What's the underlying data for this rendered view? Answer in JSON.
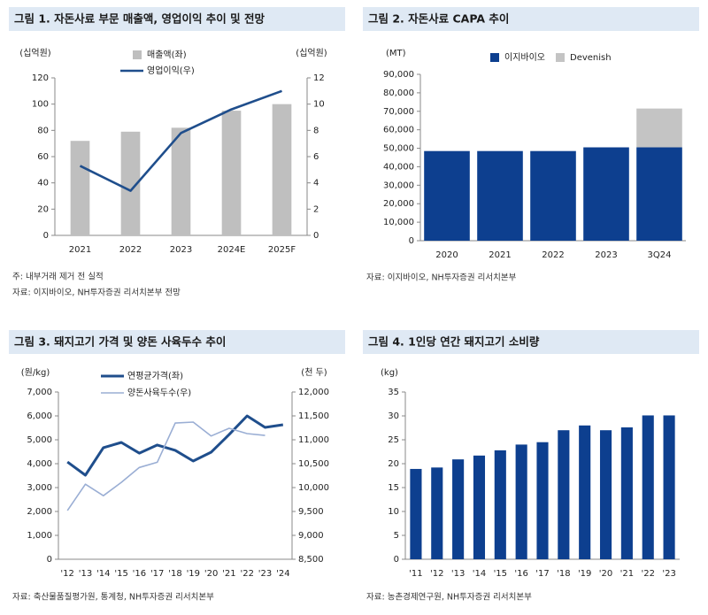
{
  "chart_data": [
    {
      "type": "combo",
      "title": "그림 1. 자돈사료 부문 매출액, 영업이익 추이 및 전망",
      "y_label": "(십억원)",
      "y2_label": "(십억원)",
      "categories": [
        "2021",
        "2022",
        "2023",
        "2024E",
        "2025F"
      ],
      "series": [
        {
          "name": "매출액(좌)",
          "type": "bar",
          "color": "#bfbfbf",
          "values": [
            72,
            79,
            82,
            95,
            100
          ]
        },
        {
          "name": "영업이익(우)",
          "type": "line",
          "axis": "y2",
          "color": "#1f4e8c",
          "values": [
            5.3,
            3.4,
            7.8,
            9.6,
            11.0
          ]
        }
      ],
      "ylim": [
        0,
        120
      ],
      "yticks": [
        0,
        20,
        40,
        60,
        80,
        100,
        120
      ],
      "y2lim": [
        0,
        12
      ],
      "y2ticks": [
        0,
        2,
        4,
        6,
        8,
        10,
        12
      ],
      "notes": [
        "주: 내부거래 제거 전 실적",
        "자료: 이지바이오, NH투자증권 리서치본부 전망"
      ]
    },
    {
      "type": "bar",
      "stacked": true,
      "title": "그림 2. 자돈사료 CAPA 추이",
      "y_label": "(MT)",
      "categories": [
        "2020",
        "2021",
        "2022",
        "2023",
        "3Q24"
      ],
      "series": [
        {
          "name": "이지바이오",
          "color": "#0d3f8f",
          "values": [
            48500,
            48500,
            48500,
            50500,
            50500
          ]
        },
        {
          "name": "Devenish",
          "color": "#c4c4c4",
          "values": [
            0,
            0,
            0,
            0,
            21000
          ]
        }
      ],
      "ylim": [
        0,
        90000
      ],
      "yticks": [
        0,
        {
          "value": 10000,
          "label": "10,000"
        },
        {
          "value": 20000,
          "label": "20,000"
        },
        {
          "value": 30000,
          "label": "30,000"
        },
        {
          "value": 40000,
          "label": "40,000"
        },
        {
          "value": 50000,
          "label": "50,000"
        },
        {
          "value": 60000,
          "label": "60,000"
        },
        {
          "value": 70000,
          "label": "70,000"
        },
        {
          "value": 80000,
          "label": "80,000"
        },
        {
          "value": 90000,
          "label": "90,000"
        }
      ],
      "notes": [
        "자료: 이지바이오, NH투자증권 리서치본부"
      ]
    },
    {
      "type": "line",
      "title": "그림 3. 돼지고기 가격 및 양돈 사육두수 추이",
      "y_label": "(원/kg)",
      "y2_label": "(천 두)",
      "categories": [
        "'12",
        "'13",
        "'14",
        "'15",
        "'16",
        "'17",
        "'18",
        "'19",
        "'20",
        "'21",
        "'22",
        "'23",
        "'24"
      ],
      "series": [
        {
          "name": "연평균가격(좌)",
          "color": "#1f4e8c",
          "width": 3,
          "values": [
            4070,
            3520,
            4670,
            4890,
            4440,
            4780,
            4560,
            4110,
            4480,
            5220,
            6000,
            5520,
            5630
          ]
        },
        {
          "name": "양돈사육두수(우)",
          "axis": "y2",
          "color": "#9aaed4",
          "width": 1.6,
          "values": [
            9520,
            10070,
            9830,
            10110,
            10420,
            10530,
            11350,
            11370,
            11080,
            11240,
            11130,
            11090,
            null
          ]
        }
      ],
      "ylim": [
        0,
        7000
      ],
      "yticks": [
        0,
        {
          "value": 1000,
          "label": "1,000"
        },
        {
          "value": 2000,
          "label": "2,000"
        },
        {
          "value": 3000,
          "label": "3,000"
        },
        {
          "value": 4000,
          "label": "4,000"
        },
        {
          "value": 5000,
          "label": "5,000"
        },
        {
          "value": 6000,
          "label": "6,000"
        },
        {
          "value": 7000,
          "label": "7,000"
        }
      ],
      "y2lim": [
        8500,
        12000
      ],
      "y2ticks": [
        {
          "value": 8500,
          "label": "8,500"
        },
        {
          "value": 9000,
          "label": "9,000"
        },
        {
          "value": 9500,
          "label": "9,500"
        },
        {
          "value": 10000,
          "label": "10,000"
        },
        {
          "value": 10500,
          "label": "10,500"
        },
        {
          "value": 11000,
          "label": "11,000"
        },
        {
          "value": 11500,
          "label": "11,500"
        },
        {
          "value": 12000,
          "label": "12,000"
        }
      ],
      "notes": [
        "자료: 축산물품질평가원, 통계청, NH투자증권 리서치본부"
      ]
    },
    {
      "type": "bar",
      "title": "그림 4. 1인당 연간 돼지고기 소비량",
      "y_label": "(kg)",
      "categories": [
        "'11",
        "'12",
        "'13",
        "'14",
        "'15",
        "'16",
        "'17",
        "'18",
        "'19",
        "'20",
        "'21",
        "'22",
        "'23"
      ],
      "color": "#0d3f8f",
      "values": [
        18.9,
        19.2,
        20.9,
        21.7,
        22.8,
        24.0,
        24.5,
        27.0,
        28.0,
        27.0,
        27.6,
        30.1,
        30.1
      ],
      "ylim": [
        0,
        35
      ],
      "yticks": [
        0,
        5,
        10,
        15,
        20,
        25,
        30,
        35
      ],
      "notes": [
        "자료: 농촌경제연구원, NH투자증권 리서치본부"
      ]
    }
  ]
}
